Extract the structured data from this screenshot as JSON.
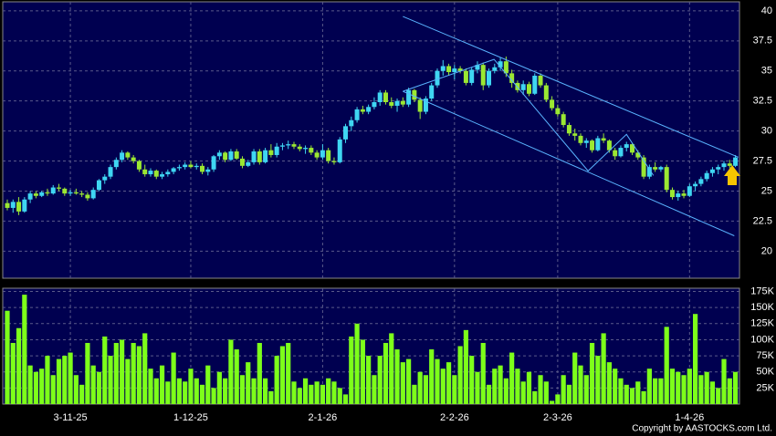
{
  "chart_data": {
    "type": "candlestick",
    "copyright": "Copyright by AASTOCKS.com Ltd.",
    "categories": [
      null,
      null,
      null,
      null,
      null,
      null,
      null,
      null,
      null,
      null,
      null,
      "3-11-25",
      null,
      null,
      null,
      null,
      null,
      null,
      null,
      null,
      null,
      null,
      null,
      null,
      null,
      null,
      null,
      null,
      null,
      null,
      null,
      null,
      "1-12-25",
      null,
      null,
      null,
      null,
      null,
      null,
      null,
      null,
      null,
      null,
      null,
      null,
      null,
      null,
      null,
      null,
      null,
      null,
      null,
      null,
      null,
      null,
      "2-1-26",
      null,
      null,
      null,
      null,
      null,
      null,
      null,
      null,
      null,
      null,
      null,
      null,
      null,
      null,
      null,
      null,
      null,
      null,
      null,
      null,
      null,
      null,
      "2-2-26",
      null,
      null,
      null,
      null,
      null,
      null,
      null,
      null,
      null,
      null,
      null,
      null,
      null,
      null,
      null,
      null,
      null,
      "2-3-26",
      null,
      null,
      null,
      null,
      null,
      null,
      null,
      null,
      null,
      null,
      null,
      null,
      null,
      null,
      null,
      null,
      null,
      null,
      null,
      null,
      null,
      null,
      "1-4-26",
      null,
      null,
      null,
      null,
      null,
      null,
      null,
      null
    ],
    "ohlc": [
      [
        24,
        24.3,
        23.4,
        23.6
      ],
      [
        23.6,
        24.3,
        23.2,
        24.1
      ],
      [
        24.1,
        24.5,
        23,
        23.3
      ],
      [
        23.3,
        24.5,
        23.2,
        24.3
      ],
      [
        24.3,
        25,
        24,
        24.8
      ],
      [
        24.8,
        25,
        24.4,
        24.6
      ],
      [
        24.6,
        25,
        24.5,
        24.9
      ],
      [
        24.9,
        25.2,
        24.6,
        24.8
      ],
      [
        24.8,
        25.5,
        24.7,
        25.3
      ],
      [
        25.3,
        25.6,
        25,
        25.2
      ],
      [
        25.2,
        25.3,
        24.6,
        24.8
      ],
      [
        24.8,
        25.1,
        24.6,
        24.9
      ],
      [
        24.9,
        25.2,
        24.7,
        24.8
      ],
      [
        24.8,
        25,
        24.5,
        24.7
      ],
      [
        24.7,
        24.9,
        24.2,
        24.4
      ],
      [
        24.4,
        25.3,
        24.3,
        25.1
      ],
      [
        25.1,
        26,
        25,
        25.9
      ],
      [
        25.9,
        26.4,
        25.6,
        26.2
      ],
      [
        26.2,
        27.2,
        26,
        27
      ],
      [
        27,
        27.8,
        26.8,
        27.6
      ],
      [
        27.6,
        28.4,
        27.4,
        28.2
      ],
      [
        28.2,
        28.3,
        27.6,
        27.8
      ],
      [
        27.8,
        28,
        27.3,
        27.5
      ],
      [
        27.5,
        27.6,
        26.6,
        26.8
      ],
      [
        26.8,
        27.2,
        26.2,
        26.4
      ],
      [
        26.4,
        26.9,
        26.2,
        26.7
      ],
      [
        26.7,
        26.8,
        26,
        26.2
      ],
      [
        26.2,
        26.6,
        26,
        26.4
      ],
      [
        26.4,
        26.8,
        26.2,
        26.6
      ],
      [
        26.6,
        27,
        26.4,
        26.9
      ],
      [
        26.9,
        27.2,
        26.7,
        27
      ],
      [
        27,
        27.4,
        26.8,
        27.2
      ],
      [
        27.2,
        27.5,
        26.9,
        27
      ],
      [
        27,
        27.3,
        26.8,
        27.1
      ],
      [
        27.1,
        27.3,
        26.4,
        26.6
      ],
      [
        26.6,
        27,
        26.3,
        26.8
      ],
      [
        26.8,
        28,
        26.6,
        27.9
      ],
      [
        27.9,
        28.4,
        27.6,
        28.2
      ],
      [
        28.2,
        28.3,
        27.4,
        27.6
      ],
      [
        27.6,
        28.5,
        27.5,
        28.3
      ],
      [
        28.3,
        28.5,
        27.6,
        27.7
      ],
      [
        27.7,
        27.9,
        26.9,
        27.1
      ],
      [
        27.1,
        27.6,
        27,
        27.4
      ],
      [
        27.4,
        28.5,
        27.2,
        28.3
      ],
      [
        28.3,
        28.5,
        27.2,
        27.4
      ],
      [
        27.4,
        28.6,
        27.3,
        28.4
      ],
      [
        28.4,
        28.9,
        27.8,
        28
      ],
      [
        28,
        29,
        27.8,
        28.7
      ],
      [
        28.7,
        29,
        28.4,
        28.8
      ],
      [
        28.8,
        29.2,
        28.5,
        28.9
      ],
      [
        28.9,
        29.1,
        28.5,
        28.7
      ],
      [
        28.7,
        28.9,
        28.3,
        28.5
      ],
      [
        28.5,
        28.8,
        28.1,
        28.6
      ],
      [
        28.6,
        28.8,
        28,
        28.2
      ],
      [
        28.2,
        28.4,
        27.6,
        27.8
      ],
      [
        27.8,
        28.9,
        27.6,
        28.4
      ],
      [
        28.4,
        28.6,
        27.3,
        27.5
      ],
      [
        27.5,
        27.8,
        27.2,
        27.4
      ],
      [
        27.4,
        29.5,
        27.3,
        29.3
      ],
      [
        29.3,
        30.6,
        29,
        30.4
      ],
      [
        30.4,
        31.2,
        30,
        30.9
      ],
      [
        30.9,
        32,
        30.7,
        31.8
      ],
      [
        31.8,
        32.1,
        31.4,
        31.6
      ],
      [
        31.6,
        32.2,
        31.4,
        32
      ],
      [
        32,
        32.8,
        31.8,
        32.4
      ],
      [
        32.4,
        33.4,
        32.1,
        33.2
      ],
      [
        33.2,
        33.4,
        32.2,
        32.4
      ],
      [
        32.4,
        32.8,
        31.9,
        32.1
      ],
      [
        32.1,
        32.7,
        31.6,
        32.5
      ],
      [
        32.5,
        32.8,
        32,
        32.2
      ],
      [
        32.2,
        33.6,
        32,
        33.4
      ],
      [
        33.4,
        33.5,
        32.4,
        32.6
      ],
      [
        32.6,
        32.8,
        31,
        31.6
      ],
      [
        31.6,
        32.9,
        31.4,
        32.7
      ],
      [
        32.7,
        34,
        32.5,
        33.8
      ],
      [
        33.8,
        35.2,
        33.6,
        35
      ],
      [
        35,
        35.9,
        34.6,
        35.4
      ],
      [
        35.4,
        35.6,
        34.6,
        34.9
      ],
      [
        34.9,
        35.5,
        34.3,
        35.2
      ],
      [
        35.2,
        35.4,
        34.8,
        35
      ],
      [
        35,
        35.2,
        33.8,
        34
      ],
      [
        34,
        35.3,
        33.8,
        35.1
      ],
      [
        35.1,
        35.8,
        34.8,
        35.5
      ],
      [
        35.5,
        35.7,
        33.4,
        33.8
      ],
      [
        33.8,
        35.2,
        33.6,
        35
      ],
      [
        35,
        35.6,
        34.8,
        35.3
      ],
      [
        35.3,
        36.1,
        35,
        35.8
      ],
      [
        35.8,
        36.2,
        34.5,
        34.8
      ],
      [
        34.8,
        35.1,
        33.6,
        34
      ],
      [
        34,
        34.2,
        33.2,
        33.4
      ],
      [
        33.4,
        34.2,
        33,
        33.9
      ],
      [
        33.9,
        34.1,
        32.9,
        33.1
      ],
      [
        33.1,
        34.8,
        33,
        34.6
      ],
      [
        34.6,
        34.8,
        33.6,
        33.8
      ],
      [
        33.8,
        34,
        32.4,
        32.6
      ],
      [
        32.6,
        32.9,
        31.7,
        31.9
      ],
      [
        31.9,
        32.2,
        31.2,
        31.4
      ],
      [
        31.4,
        31.6,
        30.3,
        30.5
      ],
      [
        30.5,
        30.7,
        29.6,
        29.8
      ],
      [
        29.8,
        30.2,
        29.2,
        29.6
      ],
      [
        29.6,
        29.8,
        28.8,
        29
      ],
      [
        29,
        29.4,
        28.6,
        29.2
      ],
      [
        29.2,
        29.3,
        28.2,
        28.4
      ],
      [
        28.4,
        29.6,
        28.3,
        29.4
      ],
      [
        29.4,
        29.8,
        29,
        29.2
      ],
      [
        29.2,
        29.3,
        28.2,
        28.4
      ],
      [
        28.4,
        28.6,
        27.6,
        27.9
      ],
      [
        27.9,
        28.8,
        27.8,
        28.6
      ],
      [
        28.6,
        29.1,
        28.3,
        28.9
      ],
      [
        28.9,
        29,
        28,
        28.2
      ],
      [
        28.2,
        28.4,
        27.6,
        27.8
      ],
      [
        27.8,
        28,
        26,
        26.2
      ],
      [
        26.2,
        27.2,
        26,
        27
      ],
      [
        27,
        27.4,
        26.6,
        26.8
      ],
      [
        26.8,
        27.1,
        26.6,
        27
      ],
      [
        27,
        27.2,
        24.9,
        25.1
      ],
      [
        25.1,
        25.3,
        24.3,
        24.5
      ],
      [
        24.5,
        25,
        24.2,
        24.8
      ],
      [
        24.8,
        25.1,
        24.4,
        24.6
      ],
      [
        24.6,
        25.6,
        24.5,
        25.4
      ],
      [
        25.4,
        25.8,
        25,
        25.6
      ],
      [
        25.6,
        26.2,
        25.4,
        26
      ],
      [
        26,
        26.7,
        25.8,
        26.5
      ],
      [
        26.5,
        27,
        26.2,
        26.8
      ],
      [
        26.8,
        27.2,
        26.4,
        27
      ],
      [
        27,
        27.5,
        26.7,
        27.3
      ],
      [
        27.3,
        27.6,
        26.9,
        27.1
      ],
      [
        27.1,
        28,
        27,
        27.8
      ]
    ],
    "volume": [
      145000,
      95000,
      118000,
      170000,
      60000,
      50000,
      55000,
      75000,
      45000,
      70000,
      75000,
      80000,
      45000,
      30000,
      95000,
      60000,
      50000,
      105000,
      75000,
      95000,
      100000,
      70000,
      95000,
      90000,
      110000,
      55000,
      40000,
      60000,
      35000,
      80000,
      40000,
      35000,
      55000,
      40000,
      30000,
      60000,
      25000,
      50000,
      40000,
      100000,
      85000,
      45000,
      65000,
      40000,
      95000,
      40000,
      20000,
      75000,
      90000,
      95000,
      35000,
      25000,
      40000,
      30000,
      35000,
      30000,
      40000,
      35000,
      25000,
      15000,
      105000,
      125000,
      100000,
      75000,
      45000,
      75000,
      95000,
      110000,
      85000,
      65000,
      70000,
      30000,
      50000,
      45000,
      85000,
      70000,
      55000,
      65000,
      45000,
      90000,
      115000,
      75000,
      50000,
      95000,
      30000,
      55000,
      60000,
      40000,
      80000,
      55000,
      35000,
      50000,
      20000,
      45000,
      35000,
      5000,
      15000,
      45000,
      30000,
      80000,
      60000,
      45000,
      95000,
      75000,
      110000,
      65000,
      55000,
      40000,
      30000,
      25000,
      35000,
      20000,
      55000,
      40000,
      40000,
      120000,
      55000,
      50000,
      45000,
      55000,
      140000,
      45000,
      50000,
      35000,
      25000,
      70000,
      40000,
      50000
    ],
    "up_color": "#3fd6f2",
    "down_color": "#9be832",
    "volume_color": "#7dff1a",
    "line_color": "#5ab4ff",
    "ylim": [
      17.75,
      40.75
    ],
    "yticks": [
      20,
      22.5,
      25,
      27.5,
      30,
      32.5,
      35,
      37.5,
      40
    ],
    "volume_ylim": [
      0,
      180000
    ],
    "volume_yticks": [
      {
        "value": 25000,
        "label": "25K"
      },
      {
        "value": 50000,
        "label": "50K"
      },
      {
        "value": 75000,
        "label": "75K"
      },
      {
        "value": 100000,
        "label": "100K"
      },
      {
        "value": 125000,
        "label": "125K"
      },
      {
        "value": 150000,
        "label": "150K"
      },
      {
        "value": 175000,
        "label": "175K"
      }
    ],
    "grid": true,
    "trend_lines": [
      {
        "x": [
          69,
          127.5
        ],
        "y": [
          39.53,
          27.82
        ]
      },
      {
        "x": [
          69,
          126.8
        ],
        "y": [
          33.3,
          21.28
        ]
      },
      {
        "x": [
          69,
          84.9,
          101.3,
          108,
          112.7
        ],
        "y": [
          33.3,
          35.96,
          26.68,
          29.72,
          26.3
        ]
      }
    ]
  }
}
